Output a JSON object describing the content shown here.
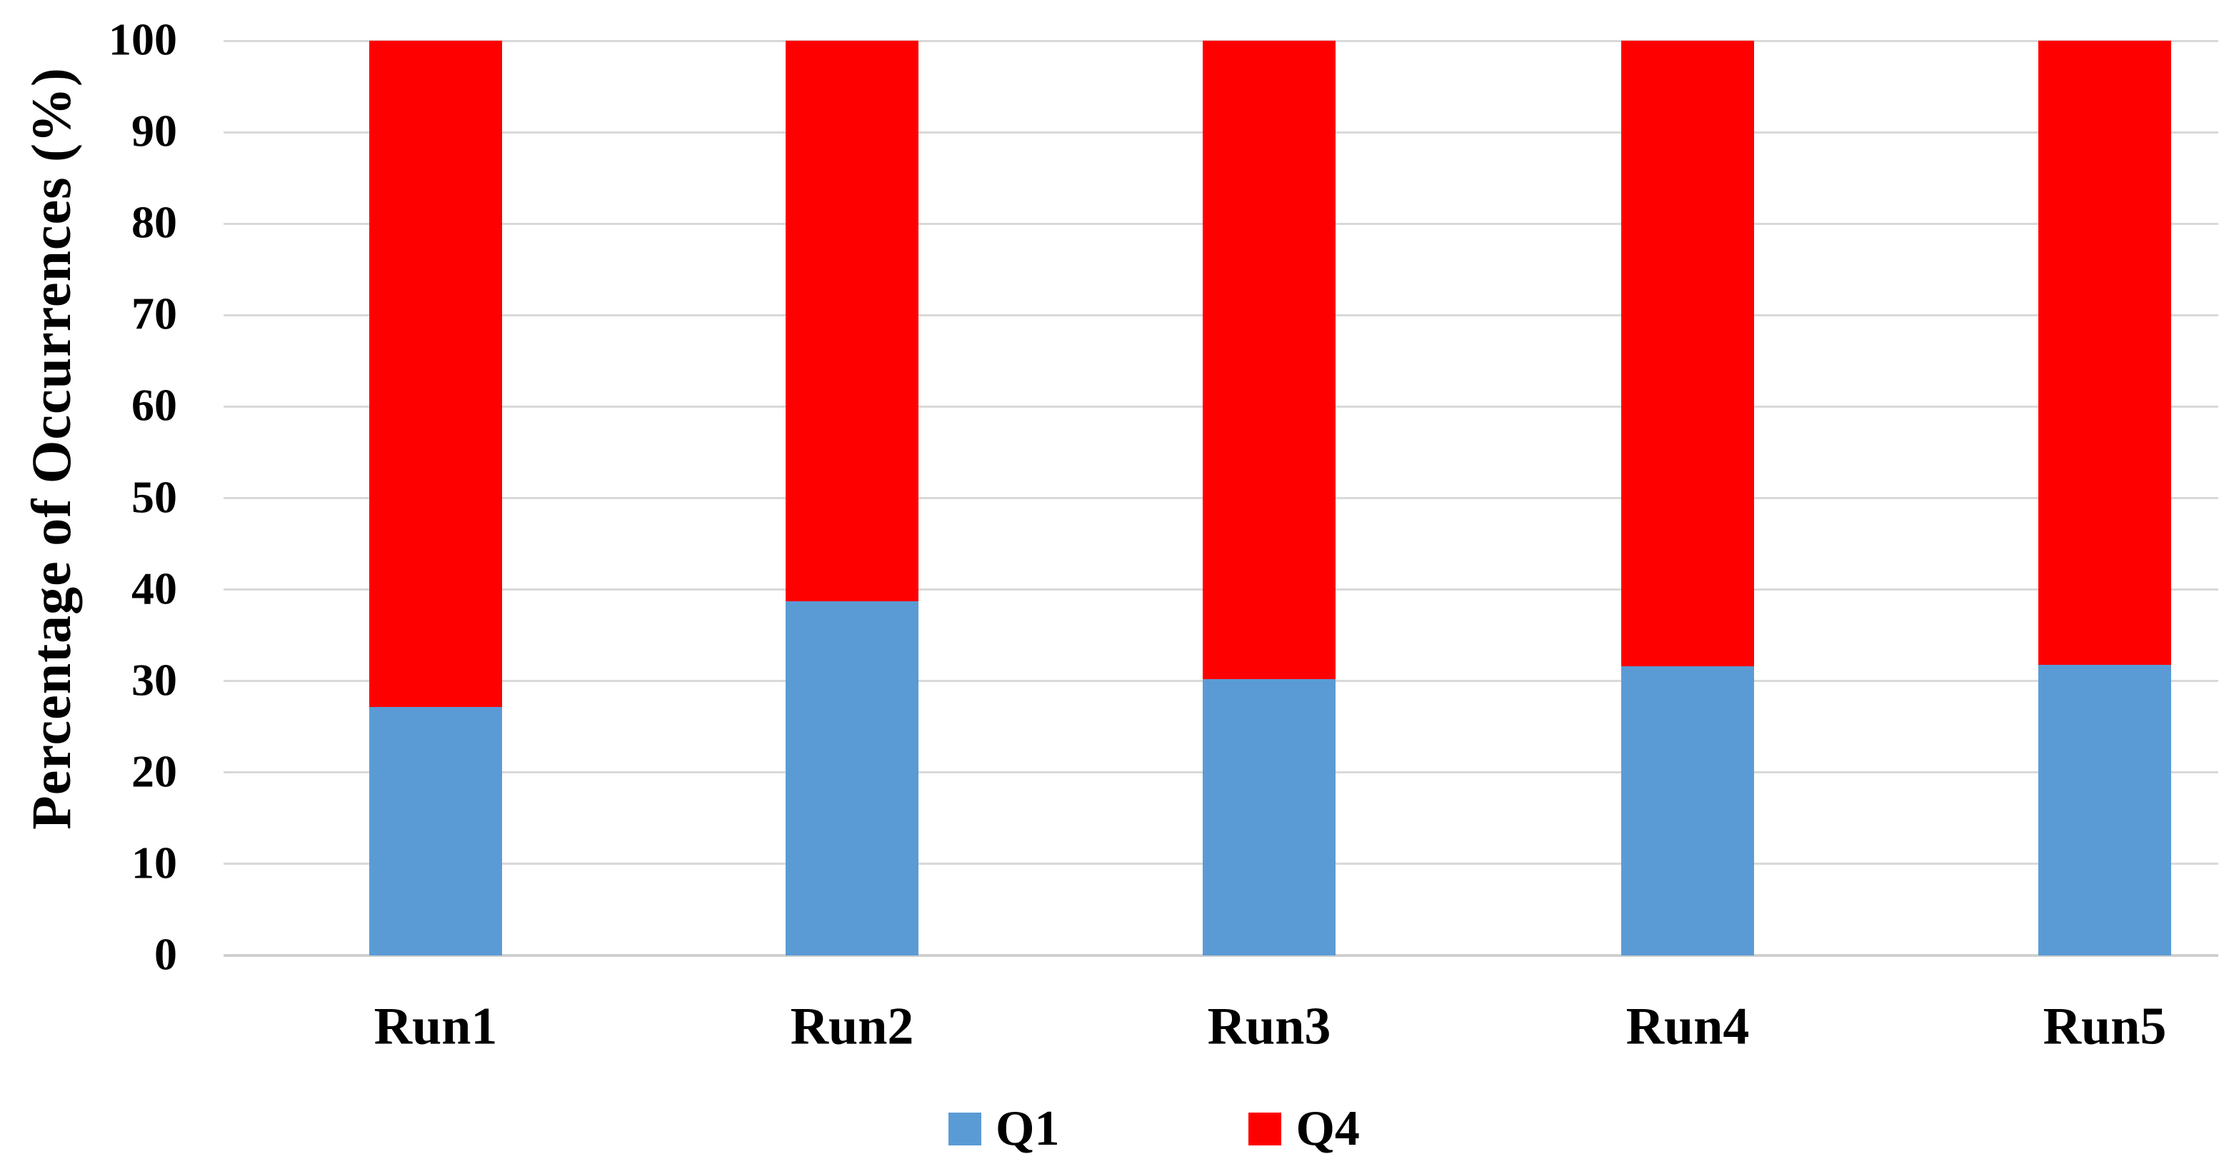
{
  "chart_data": {
    "type": "bar",
    "stacked": true,
    "title": "",
    "categories": [
      "Run1",
      "Run2",
      "Run3",
      "Run4",
      "Run5"
    ],
    "series": [
      {
        "name": "Q1",
        "color": "#5B9BD5",
        "values": [
          27.2,
          38.7,
          30.2,
          31.6,
          31.8
        ]
      },
      {
        "name": "Q4",
        "color": "#FF0000",
        "values": [
          72.8,
          61.3,
          69.8,
          68.4,
          68.2
        ]
      }
    ],
    "xlabel": "",
    "ylabel": "Percentage of Occurrences (%)",
    "ylim": [
      0,
      100
    ],
    "yticks": [
      0,
      10,
      20,
      30,
      40,
      50,
      60,
      70,
      80,
      90,
      100
    ],
    "grid": true,
    "gridline_color": "#D9D9D9",
    "zero_line_color": "#CFCFCF",
    "text_color": "#000000",
    "background_color": "#FFFFFF",
    "legend_position": "bottom",
    "legend_entries": [
      "Q1",
      "Q4"
    ]
  }
}
